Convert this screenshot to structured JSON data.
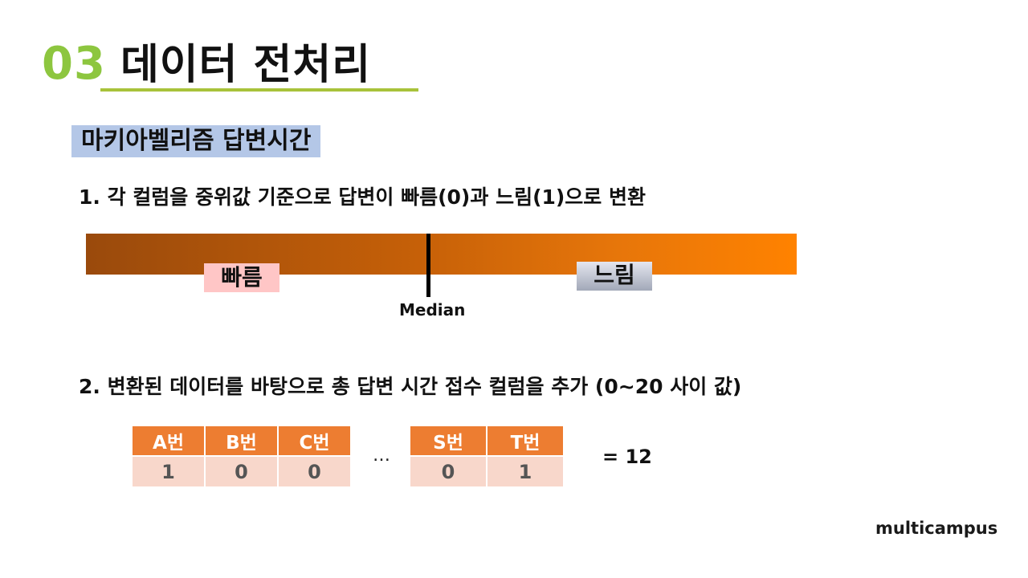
{
  "title": {
    "number": "03",
    "text": "데이터 전처리"
  },
  "subtitle": "마키아벨리즘 답변시간",
  "step1": "1. 각 컬럼을 중위값 기준으로 답변이 빠름(0)과 느림(1)으로 변환",
  "bar": {
    "fast_label": "빠름",
    "slow_label": "느림",
    "median_label": "Median"
  },
  "step2": "2. 변환된 데이터를 바탕으로 총 답변 시간 접수 컬럼을 추가 (0~20 사이 값)",
  "table_left": {
    "headers": [
      "A번",
      "B번",
      "C번"
    ],
    "values": [
      "1",
      "0",
      "0"
    ]
  },
  "ellipsis": "…",
  "table_right": {
    "headers": [
      "S번",
      "T번"
    ],
    "values": [
      "0",
      "1"
    ]
  },
  "sum": "= 12",
  "logo": "multicampus",
  "colors": {
    "accent_green": "#8dc63f",
    "header_orange": "#ed7d31",
    "cell_pink": "#f8d7cb",
    "subtitle_blue": "#b4c7e7"
  }
}
